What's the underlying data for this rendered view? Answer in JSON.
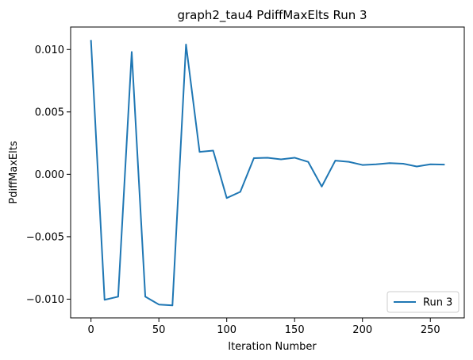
{
  "chart_data": {
    "type": "line",
    "title": "graph2_tau4 PdiffMaxElts Run 3",
    "xlabel": "Iteration Number",
    "ylabel": "PdiffMaxElts",
    "xlim": [
      -15,
      275
    ],
    "ylim": [
      -0.0115,
      0.0118
    ],
    "x_ticks": [
      0,
      50,
      100,
      150,
      200,
      250
    ],
    "x_tick_labels": [
      "0",
      "50",
      "100",
      "150",
      "200",
      "250"
    ],
    "y_ticks": [
      -0.01,
      -0.005,
      0.0,
      0.005,
      0.01
    ],
    "y_tick_labels": [
      "−0.010",
      "−0.005",
      "0.000",
      "0.005",
      "0.010"
    ],
    "grid": false,
    "legend_position": "lower-right",
    "series": [
      {
        "name": "Run 3",
        "color": "#1f77b4",
        "x": [
          0,
          10,
          20,
          30,
          40,
          50,
          60,
          70,
          80,
          90,
          100,
          110,
          120,
          130,
          140,
          150,
          160,
          170,
          180,
          190,
          200,
          210,
          220,
          230,
          240,
          250,
          260
        ],
        "y": [
          0.0107,
          -0.01005,
          -0.0098,
          0.0098,
          -0.0098,
          -0.01043,
          -0.0105,
          0.0104,
          0.0018,
          0.0019,
          -0.0019,
          -0.0014,
          0.0013,
          0.00133,
          0.0012,
          0.00133,
          0.001,
          -0.00098,
          0.0011,
          0.001,
          0.00075,
          0.0008,
          0.0009,
          0.00085,
          0.00063,
          0.0008,
          0.00078
        ]
      }
    ]
  }
}
